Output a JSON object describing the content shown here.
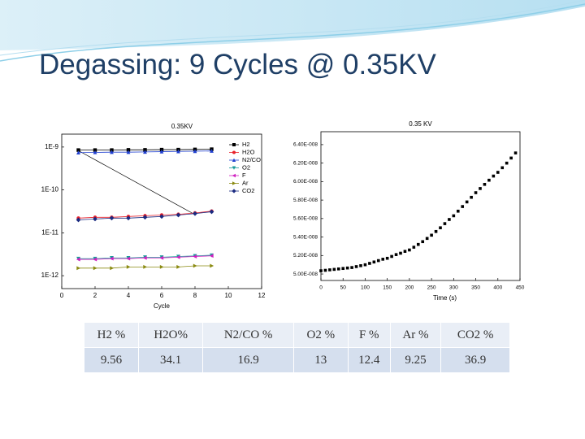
{
  "title": "Degassing: 9 Cycles @ 0.35KV",
  "chart_data": [
    {
      "type": "line",
      "title": "0.35KV",
      "xlabel": "Cycle",
      "log_scale": true,
      "legend": "upper right",
      "x": [
        1,
        2,
        3,
        4,
        5,
        6,
        7,
        8,
        9
      ],
      "series": [
        {
          "name": "H2",
          "color": "#000000",
          "marker": "square",
          "values": [
            8.5e-10,
            8.5e-10,
            8.5e-10,
            8.6e-10,
            8.6e-10,
            8.7e-10,
            8.7e-10,
            8.8e-10,
            8.9e-10
          ]
        },
        {
          "name": "H2O",
          "color": "#e8202a",
          "marker": "circle",
          "values": [
            2.2e-11,
            2.3e-11,
            2.3e-11,
            2.4e-11,
            2.5e-11,
            2.6e-11,
            2.7e-11,
            2.9e-11,
            3.2e-11
          ]
        },
        {
          "name": "N2/CO",
          "color": "#2040d0",
          "marker": "triangle-up",
          "values": [
            7.4e-10,
            7.5e-10,
            7.6e-10,
            7.6e-10,
            7.7e-10,
            7.8e-10,
            7.9e-10,
            8e-10,
            8.1e-10
          ]
        },
        {
          "name": "O2",
          "color": "#1a9a9a",
          "marker": "triangle-down",
          "values": [
            2.5e-12,
            2.5e-12,
            2.6e-12,
            2.6e-12,
            2.7e-12,
            2.7e-12,
            2.8e-12,
            2.9e-12,
            3e-12
          ]
        },
        {
          "name": "F",
          "color": "#d020c0",
          "marker": "triangle-left",
          "values": [
            2.4e-12,
            2.4e-12,
            2.5e-12,
            2.5e-12,
            2.6e-12,
            2.6e-12,
            2.7e-12,
            2.8e-12,
            2.9e-12
          ]
        },
        {
          "name": "Ar",
          "color": "#8a8a10",
          "marker": "triangle-right",
          "values": [
            1.5e-12,
            1.5e-12,
            1.5e-12,
            1.6e-12,
            1.6e-12,
            1.6e-12,
            1.6e-12,
            1.7e-12,
            1.7e-12
          ]
        },
        {
          "name": "CO2",
          "color": "#1a2a80",
          "marker": "diamond",
          "values": [
            2e-11,
            2.1e-11,
            2.2e-11,
            2.2e-11,
            2.3e-11,
            2.4e-11,
            2.6e-11,
            2.8e-11,
            3.1e-11
          ]
        }
      ],
      "xlim": [
        0,
        12
      ],
      "xticks": [
        0,
        2,
        4,
        6,
        8,
        10,
        12
      ],
      "ylim": [
        5e-13,
        2e-09
      ],
      "yticks": [
        {
          "value": 1e-09,
          "label": "1E-9"
        },
        {
          "value": 1e-10,
          "label": "1E-10"
        },
        {
          "value": 1e-11,
          "label": "1E-11"
        },
        {
          "value": 1e-12,
          "label": "1E-12"
        }
      ]
    },
    {
      "type": "scatter",
      "title": "0.35 KV",
      "xlabel": "Time (s)",
      "log_scale": false,
      "x": [
        0,
        10,
        20,
        30,
        40,
        50,
        60,
        70,
        80,
        90,
        100,
        110,
        120,
        130,
        140,
        150,
        160,
        170,
        180,
        190,
        200,
        210,
        220,
        230,
        240,
        250,
        260,
        270,
        280,
        290,
        300,
        310,
        320,
        330,
        340,
        350,
        360,
        370,
        380,
        390,
        400,
        410,
        420,
        430,
        440
      ],
      "series": [
        {
          "color": "#000000",
          "marker": "square",
          "values": [
            5.035e-08,
            5.04e-08,
            5.045e-08,
            5.05e-08,
            5.055e-08,
            5.06e-08,
            5.065e-08,
            5.07e-08,
            5.08e-08,
            5.09e-08,
            5.1e-08,
            5.115e-08,
            5.13e-08,
            5.145e-08,
            5.16e-08,
            5.17e-08,
            5.19e-08,
            5.21e-08,
            5.225e-08,
            5.245e-08,
            5.26e-08,
            5.29e-08,
            5.32e-08,
            5.35e-08,
            5.385e-08,
            5.42e-08,
            5.46e-08,
            5.5e-08,
            5.545e-08,
            5.59e-08,
            5.63e-08,
            5.68e-08,
            5.73e-08,
            5.78e-08,
            5.83e-08,
            5.88e-08,
            5.925e-08,
            5.97e-08,
            6.015e-08,
            6.06e-08,
            6.1e-08,
            6.15e-08,
            6.2e-08,
            6.255e-08,
            6.31e-08
          ]
        }
      ],
      "xlim": [
        0,
        450
      ],
      "xticks": [
        0,
        50,
        100,
        150,
        200,
        250,
        300,
        350,
        400,
        450
      ],
      "ylim": [
        4.93e-08,
        6.54e-08
      ],
      "yticks": [
        {
          "value": 5e-08,
          "label": "5.00E-008"
        },
        {
          "value": 5.2e-08,
          "label": "5.20E-008"
        },
        {
          "value": 5.4e-08,
          "label": "5.40E-008"
        },
        {
          "value": 5.6e-08,
          "label": "5.60E-008"
        },
        {
          "value": 5.8e-08,
          "label": "5.80E-008"
        },
        {
          "value": 6e-08,
          "label": "6.00E-008"
        },
        {
          "value": 6.2e-08,
          "label": "6.20E-008"
        },
        {
          "value": 6.4e-08,
          "label": "6.40E-008"
        }
      ]
    }
  ],
  "table": {
    "header": [
      "H2 %",
      "H2O%",
      "N2/CO %",
      "O2 %",
      "F %",
      "Ar %",
      "CO2 %"
    ],
    "rows": [
      [
        "9.56",
        "34.1",
        "16.9",
        "13",
        "12.4",
        "9.25",
        "36.9"
      ]
    ]
  }
}
